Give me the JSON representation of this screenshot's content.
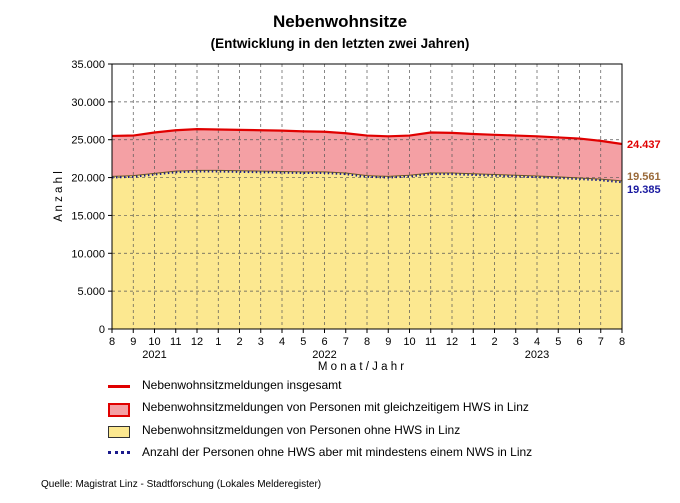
{
  "chart_data": {
    "type": "area",
    "title": "Nebenwohnsitze",
    "subtitle": "(Entwicklung in den letzten zwei Jahren)",
    "xlabel": "M o n a t / J a h r",
    "ylabel": "A n z a h l",
    "ylim": [
      0,
      35000
    ],
    "yticks": [
      0,
      5000,
      10000,
      15000,
      20000,
      25000,
      30000,
      35000
    ],
    "ytick_labels": [
      "0",
      "5.000",
      "10.000",
      "15.000",
      "20.000",
      "25.000",
      "30.000",
      "35.000"
    ],
    "x_month_labels": [
      "8",
      "9",
      "10",
      "11",
      "12",
      "1",
      "2",
      "3",
      "4",
      "5",
      "6",
      "7",
      "8",
      "9",
      "10",
      "11",
      "12",
      "1",
      "2",
      "3",
      "4",
      "5",
      "6",
      "7",
      "8"
    ],
    "year_labels": [
      {
        "label": "2021",
        "at_index": 2
      },
      {
        "label": "2022",
        "at_index": 10
      },
      {
        "label": "2023",
        "at_index": 20
      }
    ],
    "grid": true,
    "series": [
      {
        "name": "Nebenwohnsitzmeldungen insgesamt",
        "style": "line",
        "color": "#e00000",
        "values": [
          25500,
          25550,
          25950,
          26250,
          26400,
          26350,
          26300,
          26250,
          26200,
          26100,
          26050,
          25850,
          25550,
          25450,
          25550,
          25950,
          25900,
          25750,
          25650,
          25550,
          25450,
          25300,
          25150,
          24850,
          24437
        ]
      },
      {
        "name": "Nebenwohnsitzmeldungen von Personen mit gleichzeitigem HWS in Linz",
        "style": "band",
        "color": "#f4a0a4"
      },
      {
        "name": "Nebenwohnsitzmeldungen von Personen ohne HWS in Linz",
        "style": "area",
        "color": "#fce890",
        "values": [
          20150,
          20250,
          20550,
          20850,
          20950,
          20950,
          20900,
          20850,
          20800,
          20750,
          20750,
          20600,
          20250,
          20150,
          20300,
          20600,
          20600,
          20500,
          20400,
          20300,
          20200,
          20100,
          19950,
          19800,
          19561
        ]
      },
      {
        "name": "Anzahl der Personen ohne HWS aber mit mindestens einem NWS in Linz",
        "style": "dotted",
        "color": "#1a1a8c",
        "values": [
          20000,
          20100,
          20400,
          20700,
          20800,
          20800,
          20750,
          20700,
          20650,
          20600,
          20600,
          20450,
          20100,
          20000,
          20150,
          20450,
          20450,
          20350,
          20250,
          20150,
          20050,
          19950,
          19800,
          19650,
          19385
        ]
      }
    ],
    "end_labels": [
      {
        "text": "24.437",
        "color": "#e00000"
      },
      {
        "text": "19.561",
        "color": "#9a6a3a"
      },
      {
        "text": "19.385",
        "color": "#1a1aa0"
      }
    ],
    "source": "Quelle: Magistrat Linz - Stadtforschung (Lokales Melderegister)"
  }
}
